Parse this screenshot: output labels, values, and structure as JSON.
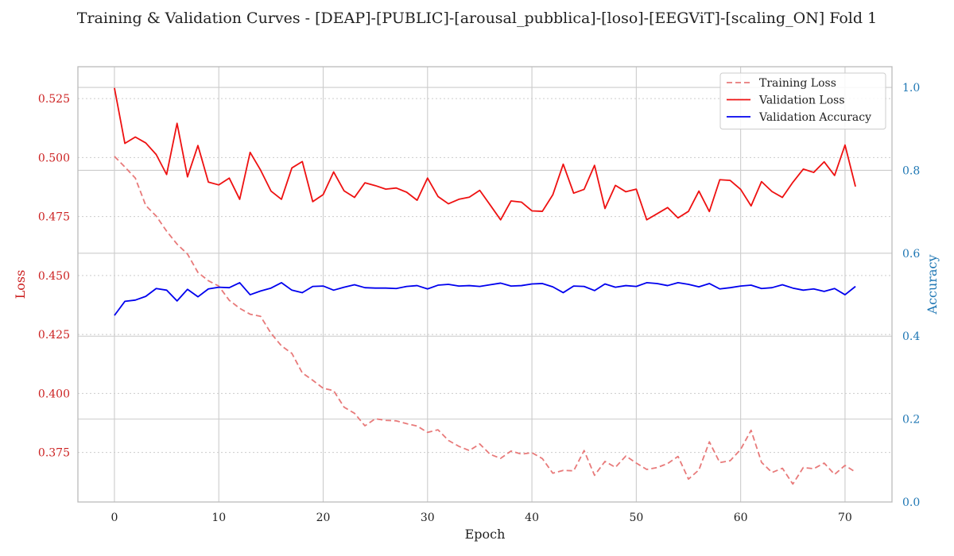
{
  "chart_data": {
    "type": "line",
    "title": "Training & Validation Curves - [DEAP]-[PUBLIC]-[arousal_pubblica]-[loso]-[EEGViT]-[scaling_ON] Fold 1",
    "xlabel": "Epoch",
    "ylabel_left": "Loss",
    "ylabel_right": "Accuracy",
    "xlim": [
      -3.5,
      74.5
    ],
    "ylim_left": [
      0.354,
      0.5385
    ],
    "ylim_right": [
      0.0,
      1.05
    ],
    "x_ticks": [
      0,
      10,
      20,
      30,
      40,
      50,
      60,
      70
    ],
    "y_ticks_left": [
      0.375,
      0.4,
      0.425,
      0.45,
      0.475,
      0.5,
      0.525
    ],
    "y_ticks_left_labels": [
      "0.375",
      "0.400",
      "0.425",
      "0.450",
      "0.475",
      "0.500",
      "0.525"
    ],
    "y_ticks_right": [
      0.0,
      0.2,
      0.4,
      0.6,
      0.8,
      1.0
    ],
    "y_ticks_right_labels": [
      "0.0",
      "0.2",
      "0.4",
      "0.6",
      "0.8",
      "1.0"
    ],
    "grid": true,
    "legend_position": "top-right",
    "colors": {
      "left_axis": "#cc2222",
      "right_axis": "#1f77b4",
      "grid": "#cccccc",
      "spine": "#bbbbbb"
    },
    "series": [
      {
        "name": "Training Loss",
        "axis": "left",
        "color": "#e87a7a",
        "dashed": true,
        "x": [
          0,
          1,
          2,
          3,
          4,
          5,
          6,
          7,
          8,
          9,
          10,
          11,
          12,
          13,
          14,
          15,
          16,
          17,
          18,
          19,
          20,
          21,
          22,
          23,
          24,
          25,
          26,
          27,
          28,
          29,
          30,
          31,
          32,
          33,
          34,
          35,
          36,
          37,
          38,
          39,
          40,
          41,
          42,
          43,
          44,
          45,
          46,
          47,
          48,
          49,
          50,
          51,
          52,
          53,
          54,
          55,
          56,
          57,
          58,
          59,
          60,
          61,
          62,
          63,
          64,
          65,
          66,
          67,
          68,
          69,
          70,
          71
        ],
        "values": [
          0.5005,
          0.496,
          0.4913,
          0.4797,
          0.4752,
          0.4688,
          0.4633,
          0.4591,
          0.4513,
          0.4478,
          0.4455,
          0.4395,
          0.4361,
          0.4336,
          0.4327,
          0.4255,
          0.4202,
          0.417,
          0.4087,
          0.4056,
          0.4022,
          0.4012,
          0.3942,
          0.3916,
          0.3863,
          0.3893,
          0.3886,
          0.3884,
          0.3872,
          0.3862,
          0.3835,
          0.3846,
          0.3801,
          0.3776,
          0.3758,
          0.3786,
          0.3742,
          0.3725,
          0.3756,
          0.3743,
          0.3749,
          0.3724,
          0.3662,
          0.3674,
          0.3672,
          0.3758,
          0.3653,
          0.3712,
          0.3687,
          0.3735,
          0.3705,
          0.3678,
          0.3686,
          0.3703,
          0.3733,
          0.3637,
          0.3676,
          0.3795,
          0.3707,
          0.3715,
          0.3763,
          0.3844,
          0.3708,
          0.3665,
          0.3683,
          0.3616,
          0.3686,
          0.3681,
          0.3705,
          0.3657,
          0.3695,
          0.3667
        ]
      },
      {
        "name": "Validation Loss",
        "axis": "left",
        "color": "#ee1111",
        "dashed": false,
        "x": [
          0,
          1,
          2,
          3,
          4,
          5,
          6,
          7,
          8,
          9,
          10,
          11,
          12,
          13,
          14,
          15,
          16,
          17,
          18,
          19,
          20,
          21,
          22,
          23,
          24,
          25,
          26,
          27,
          28,
          29,
          30,
          31,
          32,
          33,
          34,
          35,
          36,
          37,
          38,
          39,
          40,
          41,
          42,
          43,
          44,
          45,
          46,
          47,
          48,
          49,
          50,
          51,
          52,
          53,
          54,
          55,
          56,
          57,
          58,
          59,
          60,
          61,
          62,
          63,
          64,
          65,
          66,
          67,
          68,
          69,
          70,
          71
        ],
        "values": [
          0.5295,
          0.506,
          0.5087,
          0.5062,
          0.5013,
          0.4928,
          0.5145,
          0.4918,
          0.5051,
          0.4896,
          0.4884,
          0.4913,
          0.4823,
          0.5022,
          0.4947,
          0.4858,
          0.4823,
          0.4956,
          0.4983,
          0.4813,
          0.4843,
          0.4939,
          0.4859,
          0.4831,
          0.4893,
          0.4881,
          0.4866,
          0.4871,
          0.4853,
          0.4819,
          0.4913,
          0.4835,
          0.4804,
          0.4823,
          0.4832,
          0.4861,
          0.4799,
          0.4736,
          0.4816,
          0.4811,
          0.4774,
          0.4772,
          0.4842,
          0.4972,
          0.4849,
          0.4865,
          0.4967,
          0.4784,
          0.4882,
          0.4855,
          0.4866,
          0.4736,
          0.4762,
          0.4788,
          0.4744,
          0.4772,
          0.4858,
          0.4771,
          0.4906,
          0.4903,
          0.4865,
          0.4795,
          0.4898,
          0.4856,
          0.4831,
          0.4895,
          0.4951,
          0.4937,
          0.4982,
          0.4924,
          0.5053,
          0.4877
        ]
      },
      {
        "name": "Validation Accuracy",
        "axis": "right",
        "color": "#0000ee",
        "dashed": false,
        "x": [
          0,
          1,
          2,
          3,
          4,
          5,
          6,
          7,
          8,
          9,
          10,
          11,
          12,
          13,
          14,
          15,
          16,
          17,
          18,
          19,
          20,
          21,
          22,
          23,
          24,
          25,
          26,
          27,
          28,
          29,
          30,
          31,
          32,
          33,
          34,
          35,
          36,
          37,
          38,
          39,
          40,
          41,
          42,
          43,
          44,
          45,
          46,
          47,
          48,
          49,
          50,
          51,
          52,
          53,
          54,
          55,
          56,
          57,
          58,
          59,
          60,
          61,
          62,
          63,
          64,
          65,
          66,
          67,
          68,
          69,
          70,
          71
        ],
        "values": [
          0.45,
          0.484,
          0.487,
          0.496,
          0.515,
          0.511,
          0.485,
          0.513,
          0.495,
          0.514,
          0.518,
          0.517,
          0.529,
          0.5,
          0.509,
          0.516,
          0.529,
          0.511,
          0.505,
          0.52,
          0.521,
          0.511,
          0.518,
          0.524,
          0.517,
          0.516,
          0.516,
          0.515,
          0.52,
          0.522,
          0.514,
          0.523,
          0.525,
          0.521,
          0.522,
          0.52,
          0.524,
          0.528,
          0.521,
          0.522,
          0.526,
          0.527,
          0.519,
          0.505,
          0.521,
          0.52,
          0.51,
          0.526,
          0.518,
          0.522,
          0.52,
          0.529,
          0.527,
          0.522,
          0.529,
          0.525,
          0.519,
          0.527,
          0.514,
          0.517,
          0.521,
          0.523,
          0.515,
          0.517,
          0.524,
          0.516,
          0.511,
          0.514,
          0.508,
          0.515,
          0.5,
          0.52
        ]
      }
    ]
  }
}
